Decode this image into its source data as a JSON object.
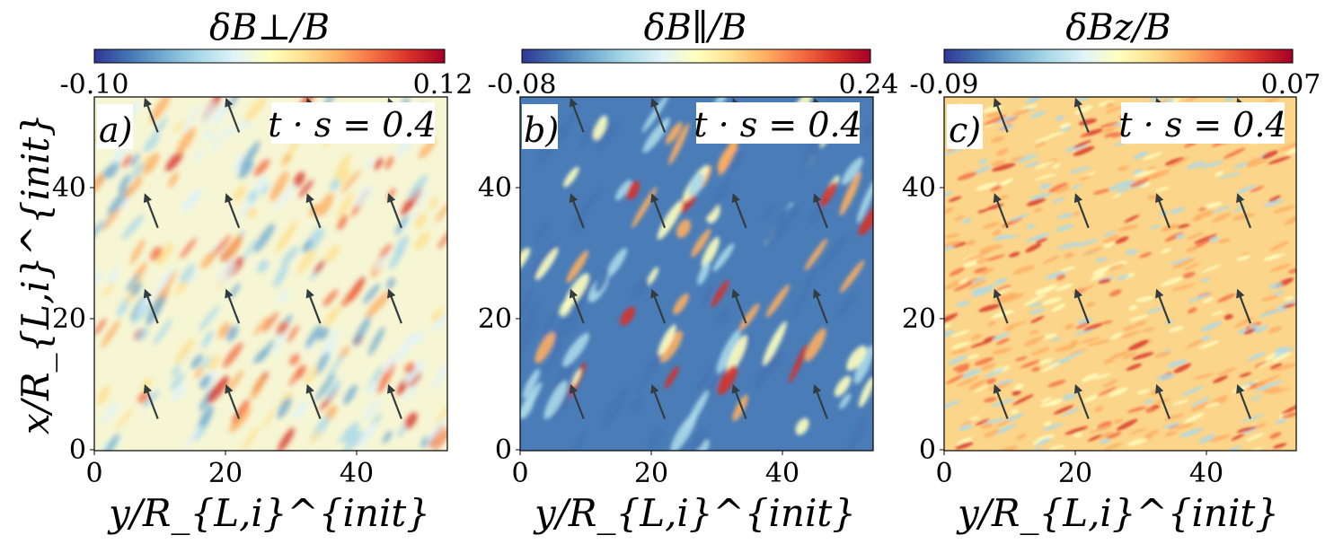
{
  "chart_data": [
    {
      "type": "heatmap",
      "panel_label": "a)",
      "time_label": "t · s = 0.4",
      "colorbar_title": "δB⊥/B",
      "colorbar_min": "-0.10",
      "colorbar_max": "0.12",
      "vmin": -0.1,
      "vmax": 0.12,
      "colormap": "RdYlBu_r",
      "xlabel": "y/R_{L,i}^{init}",
      "ylabel": "x/R_{L,i}^{init}",
      "xlim": [
        0,
        54
      ],
      "ylim": [
        0,
        54
      ],
      "xticks": [
        "0",
        "20",
        "40"
      ],
      "yticks": [
        "0",
        "20",
        "40"
      ],
      "stripe_pattern": "diagonal streaks, mixed positive/negative",
      "arrow_grid": "4x4 arrows pointing up-left"
    },
    {
      "type": "heatmap",
      "panel_label": "b)",
      "time_label": "t · s = 0.4",
      "colorbar_title": "δB∥/B",
      "colorbar_min": "-0.08",
      "colorbar_max": "0.24",
      "vmin": -0.08,
      "vmax": 0.24,
      "colormap": "RdYlBu_r",
      "xlabel": "y/R_{L,i}^{init}",
      "ylabel": "",
      "xlim": [
        0,
        54
      ],
      "ylim": [
        0,
        54
      ],
      "xticks": [
        "0",
        "20",
        "40"
      ],
      "yticks": [
        "0",
        "20",
        "40"
      ],
      "stripe_pattern": "blue background with oblique red/yellow filaments",
      "arrow_grid": "4x4 arrows pointing up-left"
    },
    {
      "type": "heatmap",
      "panel_label": "c)",
      "time_label": "t · s = 0.4",
      "colorbar_title": "δBz/B",
      "colorbar_min": "-0.09",
      "colorbar_max": "0.07",
      "vmin": -0.09,
      "vmax": 0.07,
      "colormap": "RdYlBu_r",
      "xlabel": "y/R_{L,i}^{init}",
      "ylabel": "",
      "xlim": [
        0,
        54
      ],
      "ylim": [
        0,
        54
      ],
      "xticks": [
        "0",
        "20",
        "40"
      ],
      "yticks": [
        "0",
        "20",
        "40"
      ],
      "stripe_pattern": "fine oblique striations, mostly warm",
      "arrow_grid": "4x4 arrows pointing up-left"
    }
  ],
  "colors": {
    "arrow": "#333d40",
    "axis": "#000000",
    "background": "#ffffff"
  }
}
